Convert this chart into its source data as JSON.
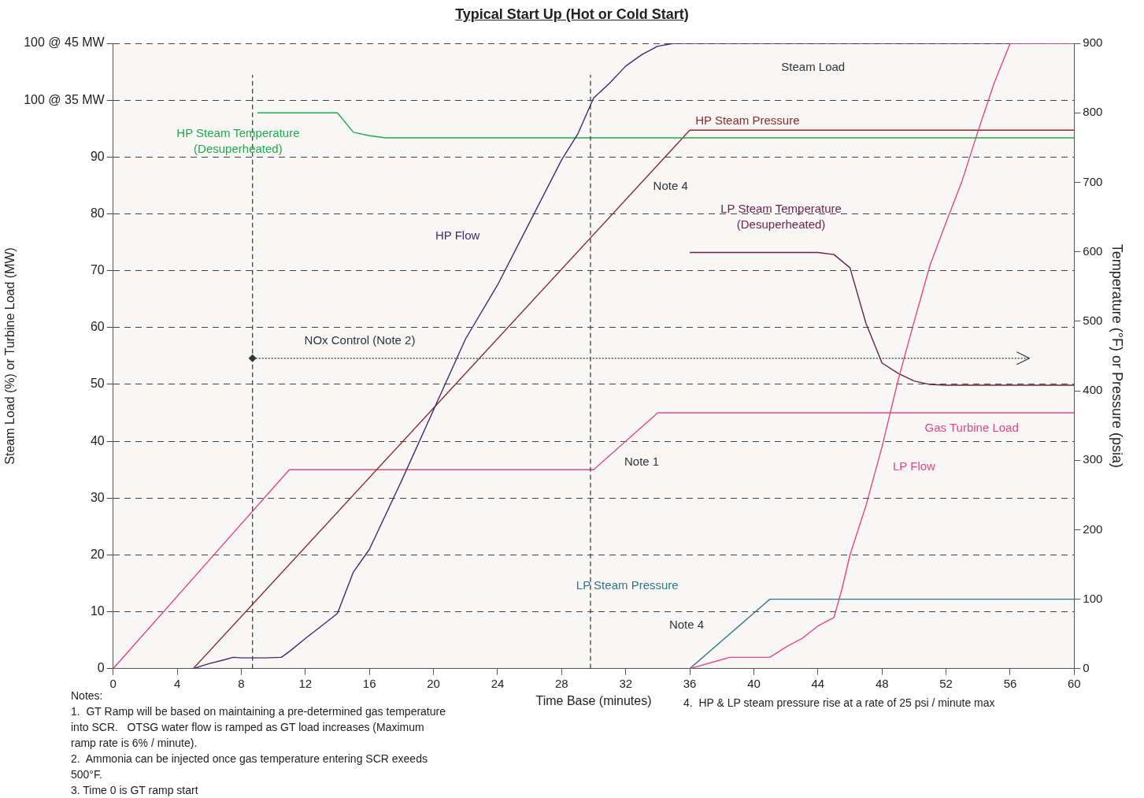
{
  "chart_data": {
    "type": "line",
    "title": "Typical Start Up (Hot or Cold Start)",
    "xlabel": "Time Base (minutes)",
    "ylabel": "Steam Load (%) or Turbine Load (MW)",
    "y2label": "Temperature (°F) or Pressure (psia)",
    "xlim": [
      0,
      60
    ],
    "xticks": [
      0,
      4,
      8,
      12,
      16,
      20,
      24,
      28,
      32,
      36,
      40,
      44,
      48,
      52,
      56,
      60
    ],
    "ylim": [
      0,
      110
    ],
    "yticks": [
      0,
      10,
      20,
      30,
      40,
      50,
      60,
      70,
      80,
      90,
      {
        "value": 100,
        "label": "100 @ 35 MW"
      },
      {
        "value": 110,
        "label": "100 @ 45 MW"
      }
    ],
    "y2lim": [
      0,
      900
    ],
    "y2ticks": [
      0,
      100,
      200,
      300,
      400,
      500,
      600,
      700,
      800,
      900
    ],
    "grid": "y",
    "legend": false,
    "marker": "none",
    "line_style": "solid",
    "series": [
      {
        "name": "Gas Turbine Load",
        "color": "#e4467f",
        "x": [
          0,
          11,
          30,
          34,
          60
        ],
        "values": [
          0,
          35,
          35,
          45,
          45
        ]
      },
      {
        "name": "HP Steam Pressure",
        "color": "#8b2a2a",
        "axis": "y2",
        "x": [
          5,
          36,
          60
        ],
        "values": [
          0,
          775,
          775
        ]
      },
      {
        "name": "HP Steam Temperature\n(Desuperheated)",
        "color": "#1faa4a",
        "axis": "y2",
        "x": [
          9,
          14,
          15,
          16,
          17,
          60
        ],
        "values": [
          800,
          800,
          772,
          767,
          764,
          764
        ]
      },
      {
        "name": "LP Steam Temperature\n(Desuperheated)",
        "color": "#6b1f4a",
        "axis": "y2",
        "x": [
          36,
          44,
          45,
          46,
          47,
          48,
          49,
          50,
          51,
          52,
          60
        ],
        "values": [
          599,
          599,
          596,
          577,
          497,
          440,
          425,
          414,
          409,
          408,
          408
        ]
      },
      {
        "name": "LP Steam Pressure",
        "color": "#2e7a82",
        "axis": "y2",
        "x": [
          36,
          41,
          60
        ],
        "values": [
          0,
          100,
          100
        ]
      },
      {
        "name": "HP Flow",
        "color": "#3d2c70",
        "x": [
          5,
          6,
          7,
          7.5,
          8,
          9.5,
          10.5,
          11,
          12,
          13,
          14,
          15,
          16,
          18,
          20,
          22,
          24,
          26,
          28,
          29,
          30,
          31,
          32,
          33,
          34,
          35,
          60
        ],
        "values": [
          0,
          0.9,
          1.6,
          2,
          1.9,
          1.9,
          2,
          3,
          5.3,
          7.5,
          9.7,
          17,
          21,
          33,
          45.5,
          58,
          67.5,
          78.5,
          89.5,
          94,
          100.4,
          103,
          106,
          108,
          109.5,
          110,
          110
        ]
      },
      {
        "name": "LP Flow",
        "color": "#e8467e",
        "x": [
          36,
          38,
          38.5,
          41,
          42,
          43,
          44,
          45,
          45.5,
          46,
          47,
          48,
          49,
          50,
          51,
          52,
          53,
          54,
          55,
          56,
          60
        ],
        "values": [
          0,
          1.6,
          2,
          2,
          3.8,
          5.3,
          7.5,
          9,
          14,
          20,
          28.7,
          39,
          50.7,
          61,
          71,
          78.5,
          85.8,
          94.6,
          103,
          110,
          110
        ]
      }
    ],
    "ref_lines": [
      {
        "axis": "x",
        "value": 8.7,
        "line_style": "dashed",
        "color": "#333333"
      },
      {
        "axis": "x",
        "value": 29.8,
        "line_style": "dashed",
        "color": "#333333"
      },
      {
        "axis": "y",
        "value": 54.6,
        "line_style": "dotted",
        "color": "#333333"
      }
    ],
    "annotations": [
      "Notes:\n1.  GT Ramp will be based on maintaining a pre-determined gas temperature\ninto SCR.   OTSG water flow is ramped as GT load increases (Maximum\nramp rate is 6% / minute).\n2.  Ammonia can be injected once gas temperature entering SCR exeeds\n500°F.\n3. Time 0 is GT ramp start",
      "4.  HP & LP steam pressure rise at a rate of 25 psi / minute max",
      "Steam Load",
      "Note 4",
      "NOx Control (Note 2)",
      "Note 1",
      "Note 4"
    ]
  }
}
